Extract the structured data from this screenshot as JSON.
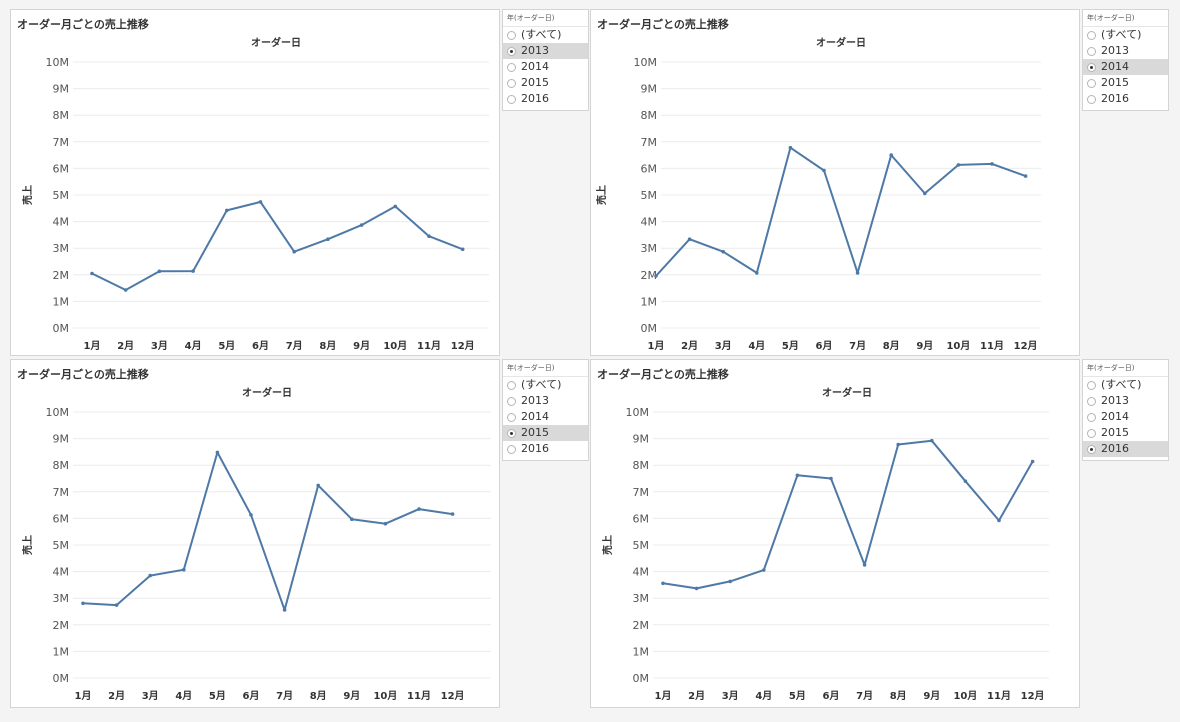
{
  "colors": {
    "line": "#4e79a7",
    "grid": "#ececec",
    "text": "#333333",
    "selected_bg": "#d9d9d9"
  },
  "panels": [
    {
      "title": "オーダー月ごとの売上推移",
      "filter": {
        "title": "年(オーダー日)",
        "options": [
          "(すべて)",
          "2013",
          "2014",
          "2015",
          "2016"
        ],
        "selected": "2013"
      }
    },
    {
      "title": "オーダー月ごとの売上推移",
      "filter": {
        "title": "年(オーダー日)",
        "options": [
          "(すべて)",
          "2013",
          "2014",
          "2015",
          "2016"
        ],
        "selected": "2014"
      }
    },
    {
      "title": "オーダー月ごとの売上推移",
      "filter": {
        "title": "年(オーダー日)",
        "options": [
          "(すべて)",
          "2013",
          "2014",
          "2015",
          "2016"
        ],
        "selected": "2015"
      }
    },
    {
      "title": "オーダー月ごとの売上推移",
      "filter": {
        "title": "年(オーダー日)",
        "options": [
          "(すべて)",
          "2013",
          "2014",
          "2015",
          "2016"
        ],
        "selected": "2016"
      }
    }
  ],
  "chart_data": [
    {
      "type": "line",
      "title": "オーダー日",
      "xlabel": "",
      "ylabel": "売上",
      "categories": [
        "1月",
        "2月",
        "3月",
        "4月",
        "5月",
        "6月",
        "7月",
        "8月",
        "9月",
        "10月",
        "11月",
        "12月"
      ],
      "yticks": [
        "0M",
        "1M",
        "2M",
        "3M",
        "4M",
        "5M",
        "6M",
        "7M",
        "8M",
        "9M",
        "10M"
      ],
      "ylim": [
        0,
        10000000
      ],
      "series": [
        {
          "values": [
            2050000,
            1430000,
            2130000,
            2140000,
            4420000,
            4740000,
            2870000,
            3340000,
            3870000,
            4570000,
            3450000,
            2960000
          ]
        }
      ]
    },
    {
      "type": "line",
      "title": "オーダー日",
      "xlabel": "",
      "ylabel": "売上",
      "categories": [
        "1月",
        "2月",
        "3月",
        "4月",
        "5月",
        "6月",
        "7月",
        "8月",
        "9月",
        "10月",
        "11月",
        "12月"
      ],
      "yticks": [
        "0M",
        "1M",
        "2M",
        "3M",
        "4M",
        "5M",
        "6M",
        "7M",
        "8M",
        "9M",
        "10M"
      ],
      "ylim": [
        0,
        10000000
      ],
      "series": [
        {
          "values": [
            1960000,
            3340000,
            2870000,
            2070000,
            6780000,
            5920000,
            2070000,
            6500000,
            5060000,
            6130000,
            6170000,
            5710000
          ]
        }
      ]
    },
    {
      "type": "line",
      "title": "オーダー日",
      "xlabel": "",
      "ylabel": "売上",
      "categories": [
        "1月",
        "2月",
        "3月",
        "4月",
        "5月",
        "6月",
        "7月",
        "8月",
        "9月",
        "10月",
        "11月",
        "12月"
      ],
      "yticks": [
        "0M",
        "1M",
        "2M",
        "3M",
        "4M",
        "5M",
        "6M",
        "7M",
        "8M",
        "9M",
        "10M"
      ],
      "ylim": [
        0,
        10000000
      ],
      "series": [
        {
          "values": [
            2810000,
            2740000,
            3850000,
            4070000,
            8480000,
            6130000,
            2560000,
            7240000,
            5970000,
            5800000,
            6350000,
            6160000
          ]
        }
      ]
    },
    {
      "type": "line",
      "title": "オーダー日",
      "xlabel": "",
      "ylabel": "売上",
      "categories": [
        "1月",
        "2月",
        "3月",
        "4月",
        "5月",
        "6月",
        "7月",
        "8月",
        "9月",
        "10月",
        "11月",
        "12月"
      ],
      "yticks": [
        "0M",
        "1M",
        "2M",
        "3M",
        "4M",
        "5M",
        "6M",
        "7M",
        "8M",
        "9M",
        "10M"
      ],
      "ylim": [
        0,
        10000000
      ],
      "series": [
        {
          "values": [
            3560000,
            3370000,
            3630000,
            4060000,
            7620000,
            7500000,
            4250000,
            8780000,
            8920000,
            7400000,
            5920000,
            8140000
          ]
        }
      ]
    }
  ]
}
